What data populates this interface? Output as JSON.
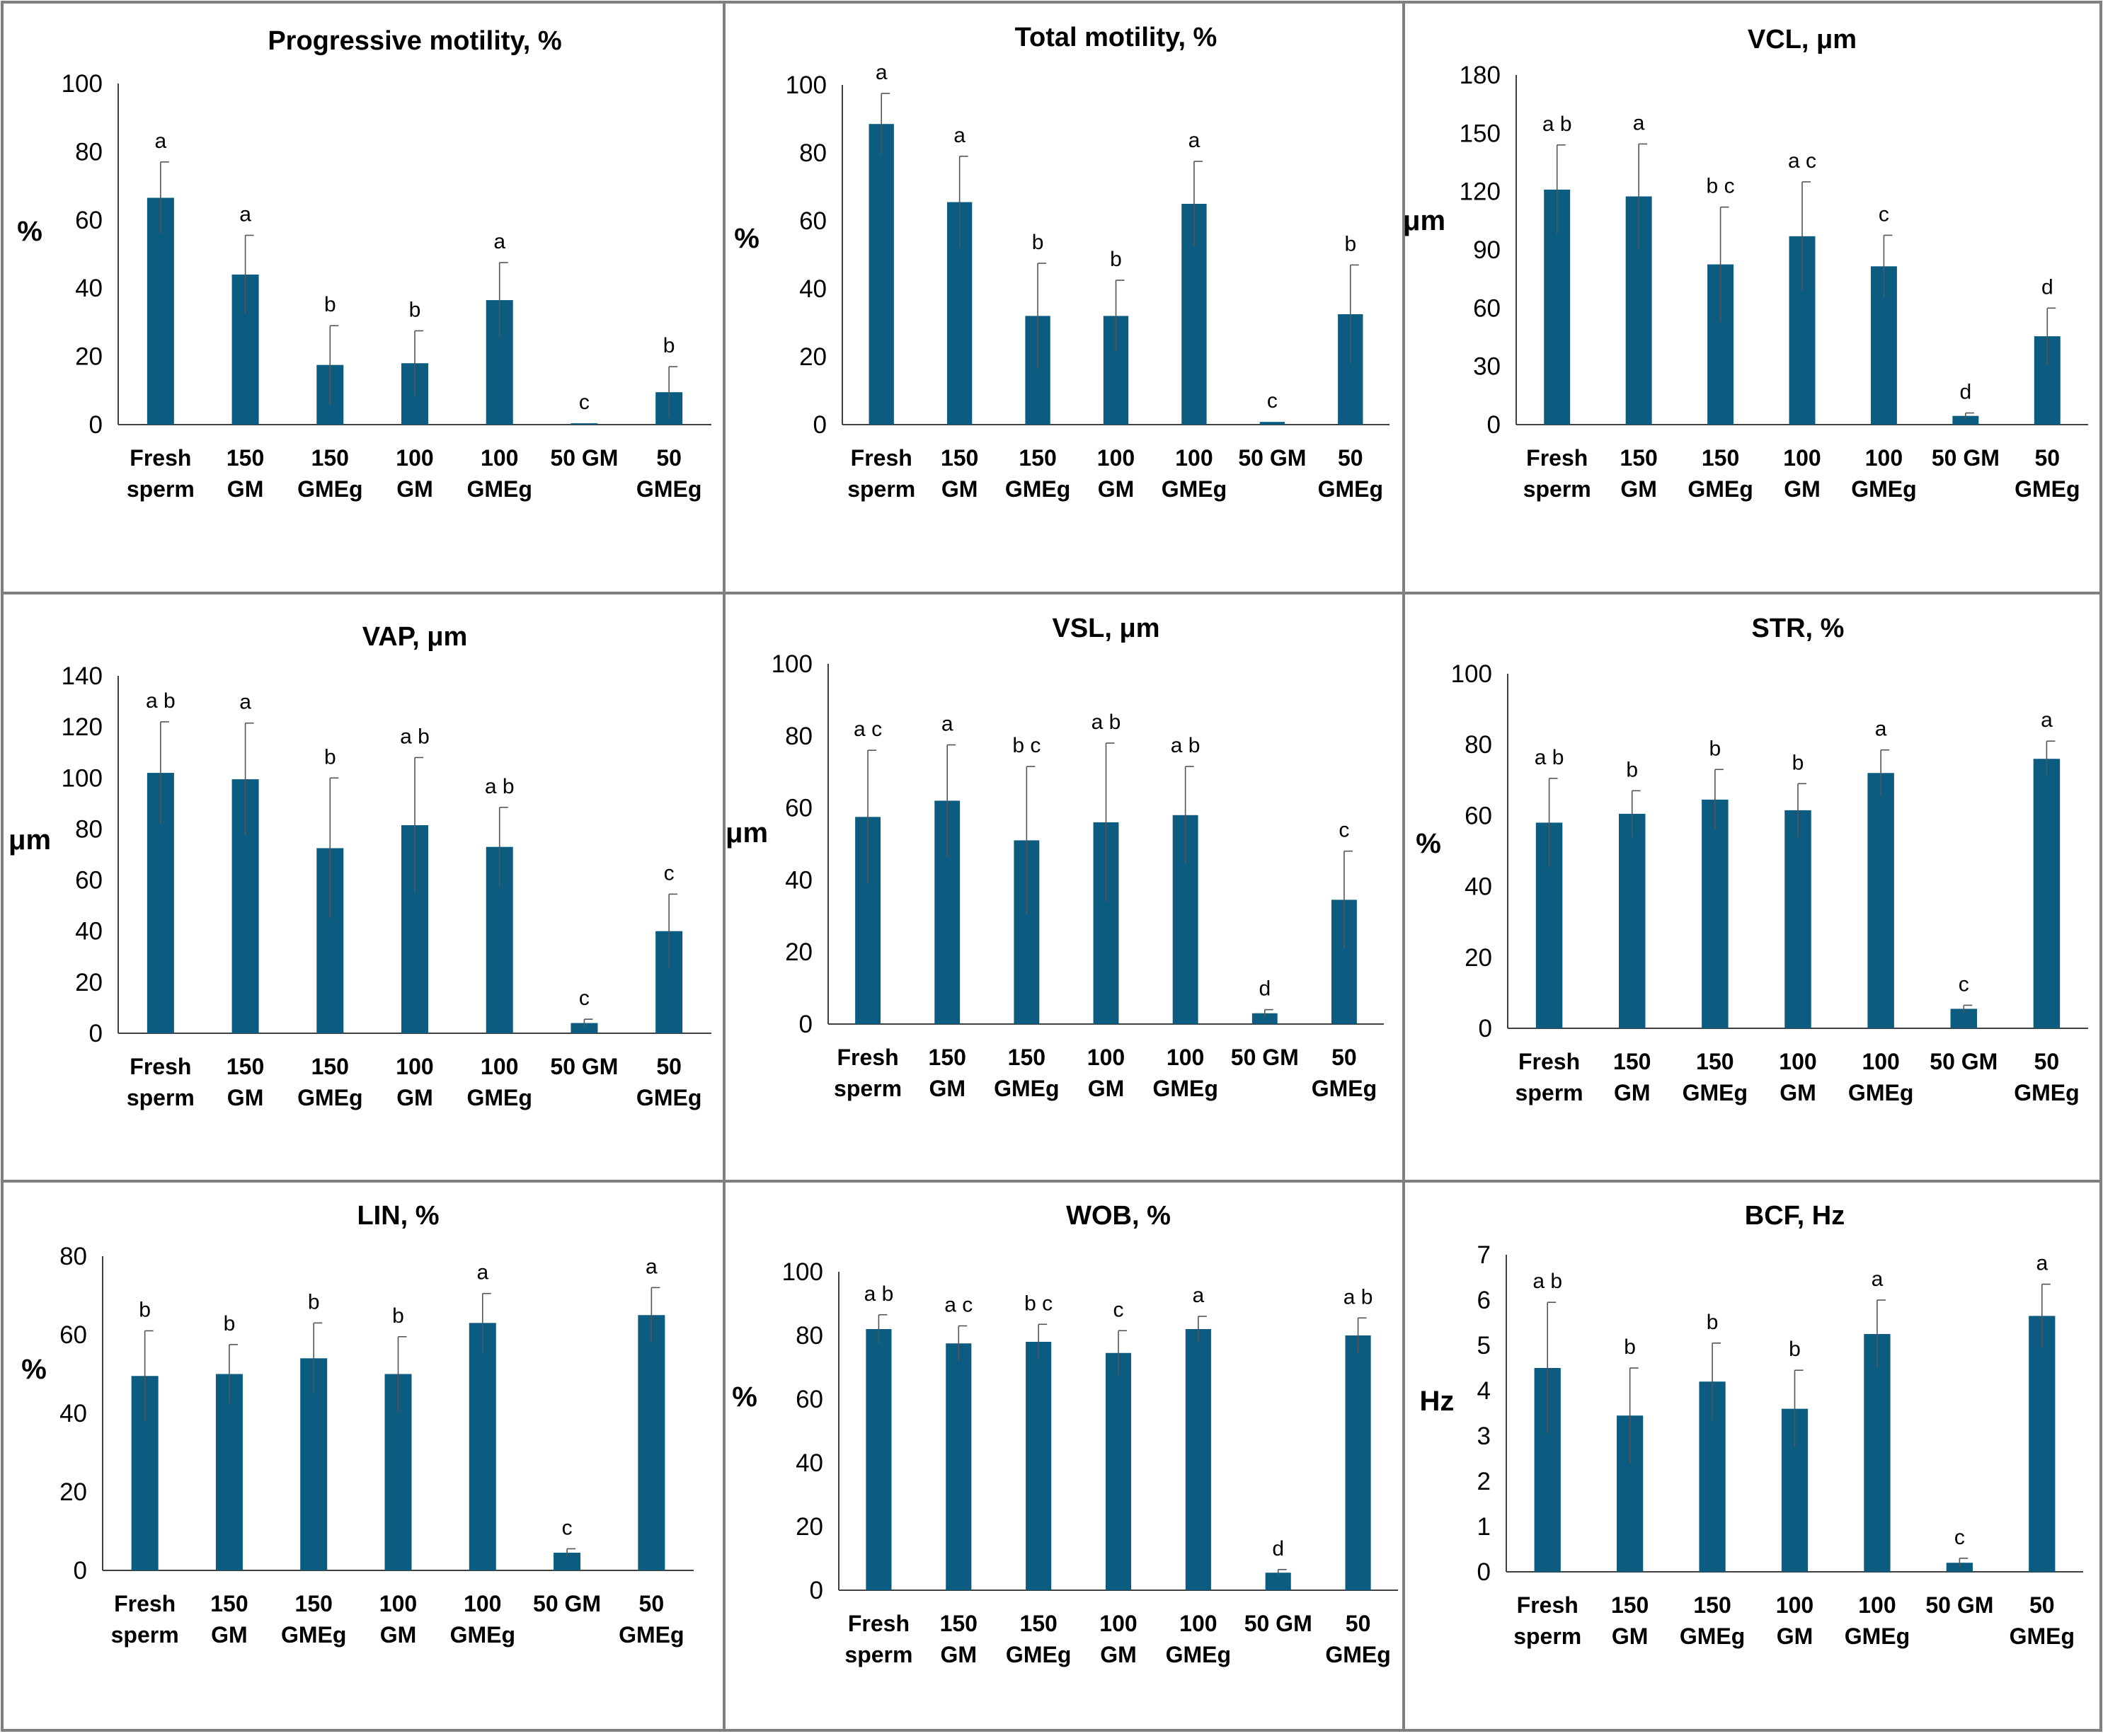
{
  "categories": [
    [
      "Fresh",
      "sperm"
    ],
    [
      "150",
      "GM"
    ],
    [
      "150",
      "GMEg"
    ],
    [
      "100",
      "GM"
    ],
    [
      "100",
      "GMEg"
    ],
    [
      "50 GM"
    ],
    [
      "50",
      "GMEg"
    ]
  ],
  "bar_color": "#0b5c80",
  "chart_data": [
    {
      "type": "bar",
      "title": "Progressive motility, %",
      "ylabel": "%",
      "ylim": [
        0,
        100
      ],
      "ticks": [
        0,
        20,
        40,
        60,
        80,
        100
      ],
      "values": [
        66.5,
        44,
        17.5,
        18,
        36.5,
        0.4,
        9.5
      ],
      "errors": [
        10.5,
        11.5,
        11.5,
        9.5,
        11,
        0,
        7.5
      ],
      "letters": [
        "a",
        "a",
        "b",
        "b",
        "a",
        "c",
        "b"
      ]
    },
    {
      "type": "bar",
      "title": "Total motility, %",
      "ylabel": "%",
      "ylim": [
        0,
        100
      ],
      "ticks": [
        0,
        20,
        40,
        60,
        80,
        100
      ],
      "values": [
        88.5,
        65.5,
        32,
        32,
        65,
        0.8,
        32.5
      ],
      "errors": [
        9,
        13.5,
        15.5,
        10.5,
        12.5,
        0,
        14.5
      ],
      "letters": [
        "a",
        "a",
        "b",
        "b",
        "a",
        "c",
        "b"
      ]
    },
    {
      "type": "bar",
      "title": "VCL, μm",
      "ylabel": "μm",
      "ylim": [
        0,
        180
      ],
      "ticks": [
        0,
        30,
        60,
        90,
        120,
        150,
        180
      ],
      "values": [
        121,
        117.5,
        82.5,
        97,
        81.5,
        4.5,
        45.5
      ],
      "errors": [
        23,
        27,
        29.5,
        28,
        16,
        1.5,
        14.5
      ],
      "letters": [
        "a b",
        "a",
        "b c",
        "a c",
        "c",
        "d",
        "d"
      ]
    },
    {
      "type": "bar",
      "title": "VAP,  μm",
      "ylabel": "μm",
      "ylim": [
        0,
        140
      ],
      "ticks": [
        0,
        20,
        40,
        60,
        80,
        100,
        120,
        140
      ],
      "values": [
        102,
        99.5,
        72.5,
        81.5,
        73,
        4,
        40
      ],
      "errors": [
        20,
        22,
        27.5,
        26.5,
        15.5,
        1.5,
        14.5
      ],
      "letters": [
        "a b",
        "a",
        "b",
        "a b",
        "a b",
        "c",
        "c"
      ]
    },
    {
      "type": "bar",
      "title": "VSL,  μm",
      "ylabel": "μm",
      "ylim": [
        0,
        100
      ],
      "ticks": [
        0,
        20,
        40,
        60,
        80,
        100
      ],
      "values": [
        57.5,
        62,
        51,
        56,
        58,
        3,
        34.5
      ],
      "errors": [
        18.5,
        15.5,
        20.5,
        22,
        13.5,
        1,
        13.5
      ],
      "letters": [
        "a c",
        "a",
        "b c",
        "a b",
        "a b",
        "d",
        "c"
      ]
    },
    {
      "type": "bar",
      "title": "STR, %",
      "ylabel": "%",
      "ylim": [
        0,
        100
      ],
      "ticks": [
        0,
        20,
        40,
        60,
        80,
        100
      ],
      "values": [
        58,
        60.5,
        64.5,
        61.5,
        72,
        5.5,
        76
      ],
      "errors": [
        12.5,
        6.5,
        8.5,
        7.5,
        6.5,
        1,
        5
      ],
      "letters": [
        "a b",
        "b",
        "b",
        "b",
        "a",
        "c",
        "a"
      ]
    },
    {
      "type": "bar",
      "title": "LIN, %",
      "ylabel": "%",
      "ylim": [
        0,
        80
      ],
      "ticks": [
        0,
        20,
        40,
        60,
        80
      ],
      "values": [
        49.5,
        50,
        54,
        50,
        63,
        4.5,
        65
      ],
      "errors": [
        11.5,
        7.5,
        9,
        9.5,
        7.5,
        1,
        7
      ],
      "letters": [
        "b",
        "b",
        "b",
        "b",
        "a",
        "c",
        "a"
      ]
    },
    {
      "type": "bar",
      "title": "WOB, %",
      "ylabel": "%",
      "ylim": [
        0,
        100
      ],
      "ticks": [
        0,
        20,
        40,
        60,
        80,
        100
      ],
      "values": [
        82,
        77.5,
        78,
        74.5,
        82,
        5.5,
        80
      ],
      "errors": [
        4.5,
        5.5,
        5.5,
        7,
        4,
        1,
        5.5
      ],
      "letters": [
        "a b",
        "a c",
        "b c",
        "c",
        "a",
        "d",
        "a b"
      ]
    },
    {
      "type": "bar",
      "title": "BCF, Hz",
      "ylabel": "Hz",
      "ylim": [
        0,
        7
      ],
      "ticks": [
        0,
        1,
        2,
        3,
        4,
        5,
        6,
        7
      ],
      "values": [
        4.5,
        3.45,
        4.2,
        3.6,
        5.25,
        0.2,
        5.65
      ],
      "errors": [
        1.45,
        1.05,
        0.85,
        0.85,
        0.75,
        0.1,
        0.7
      ],
      "letters": [
        "a b",
        "b",
        "b",
        "b",
        "a",
        "c",
        "a"
      ]
    }
  ]
}
